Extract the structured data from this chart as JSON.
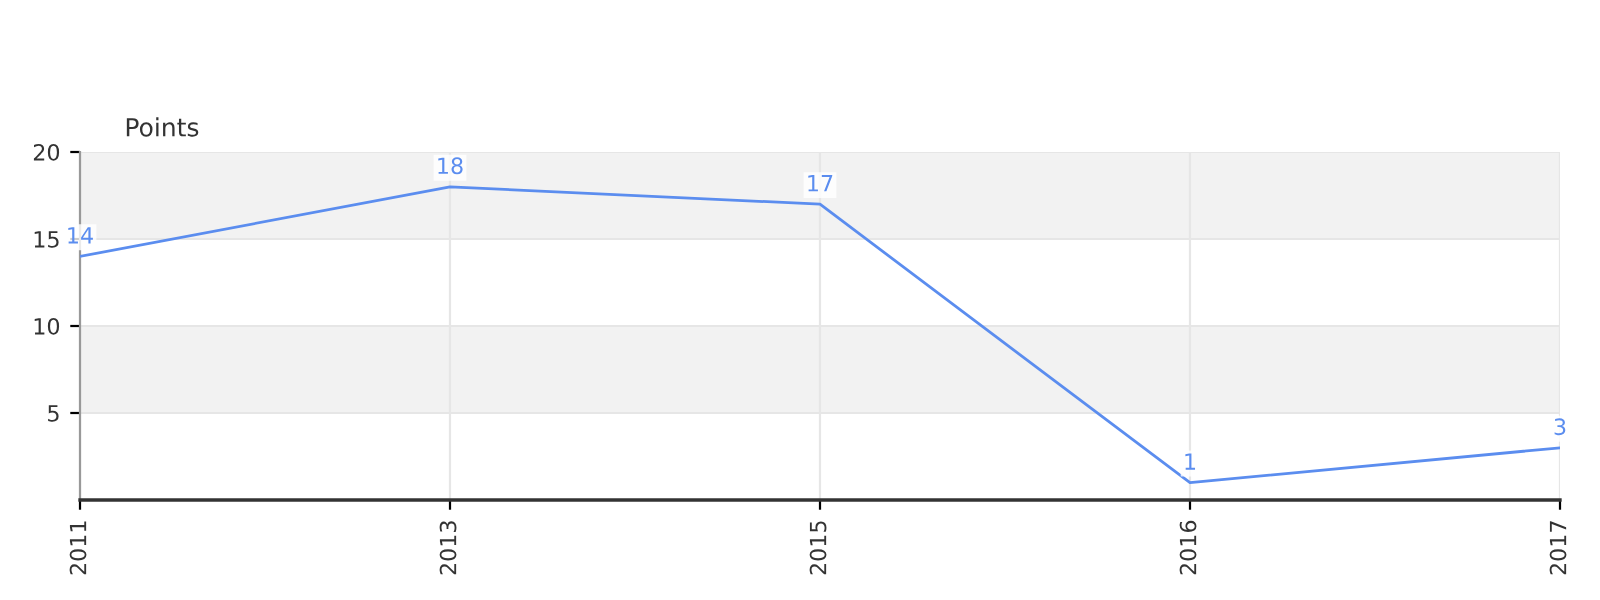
{
  "chart_data": {
    "type": "line",
    "ylabel": "Points",
    "categories": [
      "2011",
      "2013",
      "2015",
      "2016",
      "2017"
    ],
    "series": [
      {
        "color": "#5b8def",
        "values": [
          14,
          18,
          17,
          1,
          3
        ]
      }
    ],
    "ylim": [
      0,
      20
    ],
    "yticks": [
      5,
      10,
      15,
      20
    ],
    "bands": [
      {
        "axis": "y",
        "from": 5,
        "to": 10,
        "color": "#f2f2f2"
      },
      {
        "axis": "y",
        "from": 15,
        "to": 20,
        "color": "#f2f2f2"
      }
    ],
    "grid": true,
    "data_labels": true,
    "marker": "none",
    "line_style": "solid"
  }
}
